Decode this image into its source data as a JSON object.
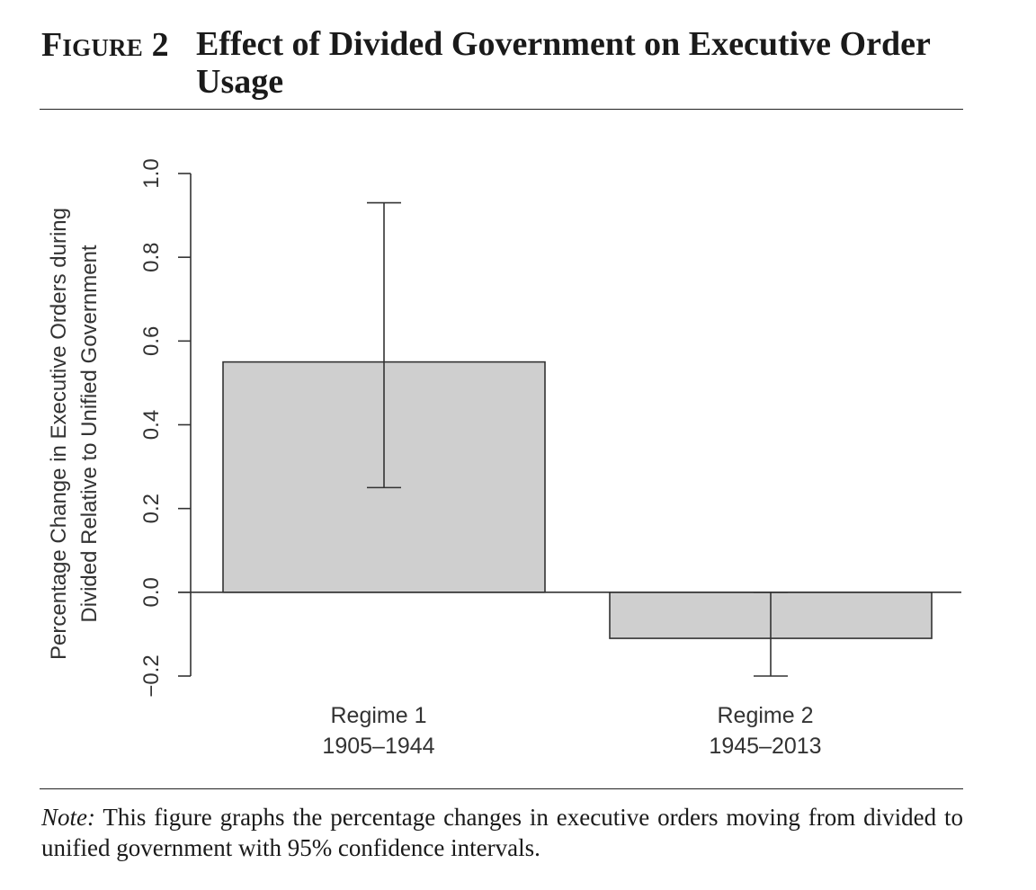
{
  "figure": {
    "label": "Figure 2",
    "title": "Effect of Divided Government on Executive Order Usage"
  },
  "note": {
    "label": "Note:",
    "text": " This figure graphs the percentage changes in executive orders moving from divided to unified government with 95% confidence intervals."
  },
  "chart_data": {
    "type": "bar",
    "categories": [
      "Regime 1",
      "Regime 2"
    ],
    "category_sublabels": [
      "1905–1944",
      "1945–2013"
    ],
    "values": [
      0.55,
      -0.11
    ],
    "error_bars": [
      {
        "lower": 0.25,
        "upper": 0.93
      },
      {
        "lower": -0.2,
        "upper": 0.0
      }
    ],
    "ylabel_lines": [
      "Percentage Change in Executive Orders during",
      "Divided Relative to Unified Government"
    ],
    "yticks": [
      -0.2,
      0.0,
      0.2,
      0.4,
      0.6,
      0.8,
      1.0
    ],
    "ytick_labels": [
      "−0.2",
      "0.0",
      "0.2",
      "0.4",
      "0.6",
      "0.8",
      "1.0"
    ],
    "ylim": [
      -0.2,
      1.0
    ],
    "zero_line": true,
    "grid": false,
    "colors": {
      "bar_fill": "#cfcfcf",
      "bar_stroke": "#333333",
      "axis": "#333333"
    }
  }
}
